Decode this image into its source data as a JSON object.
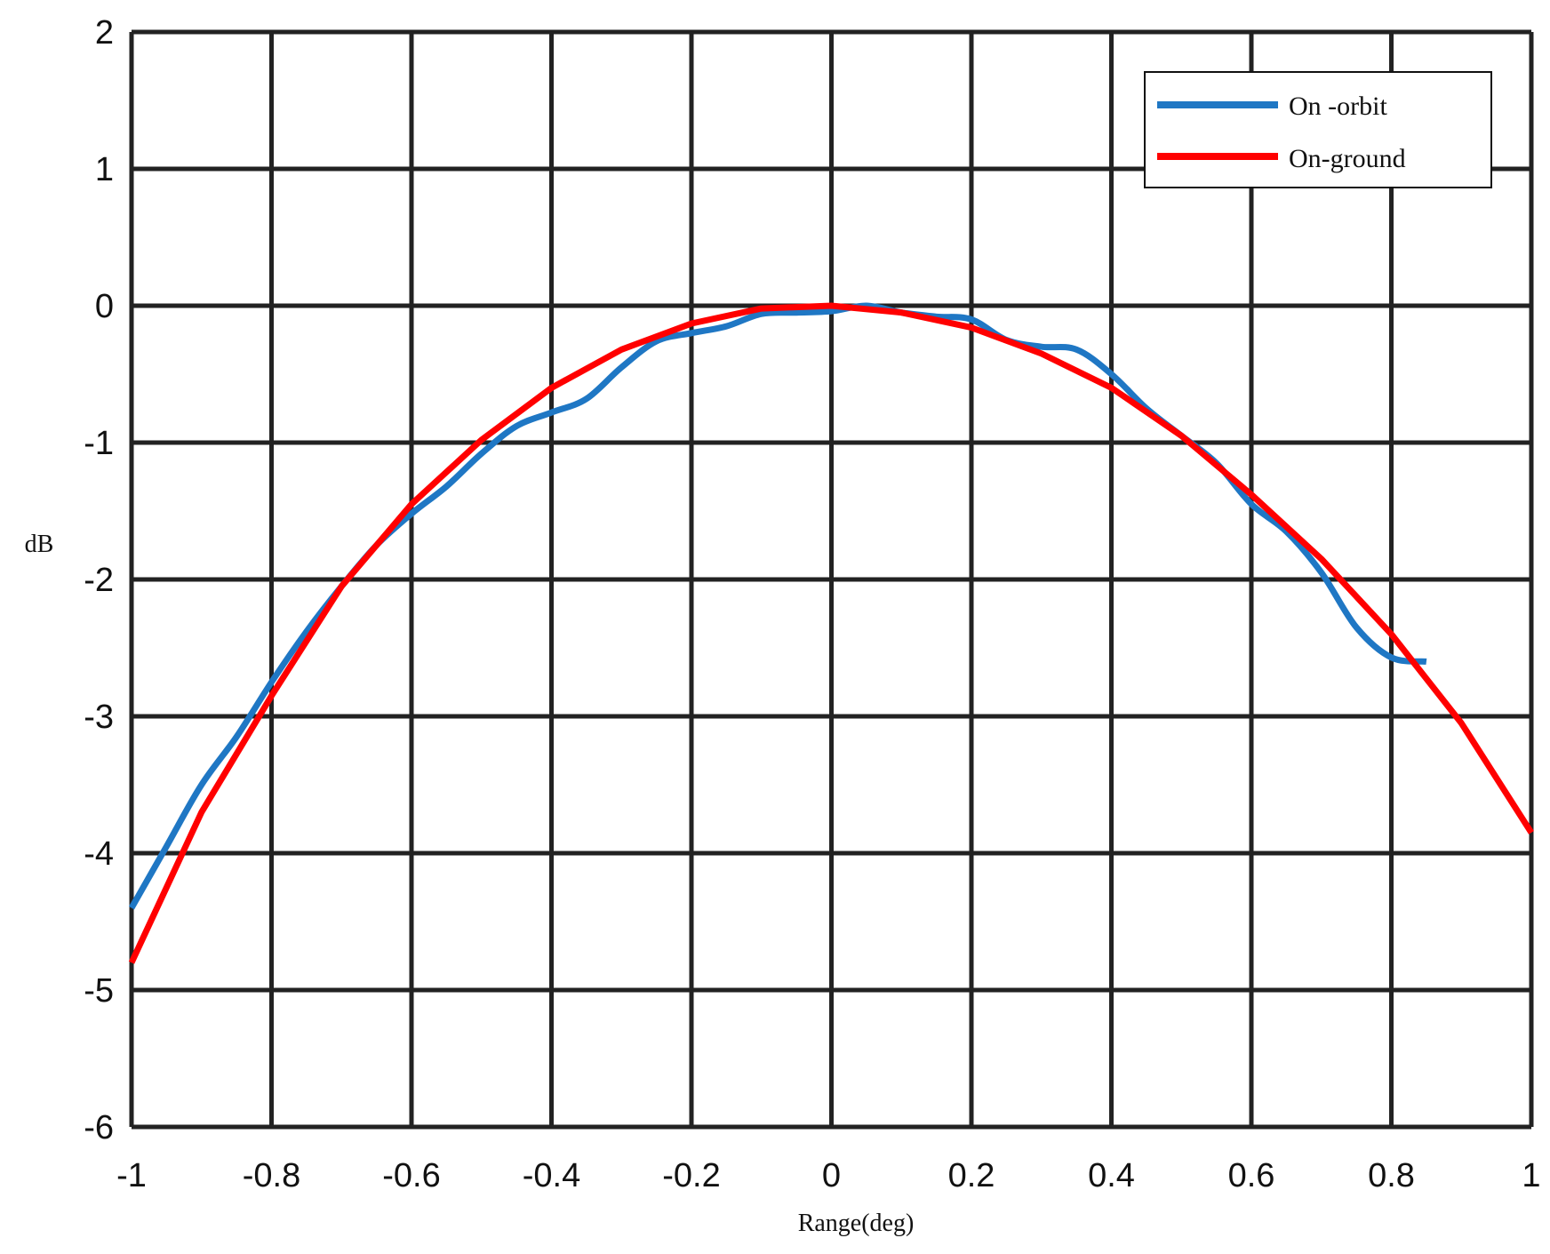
{
  "chart_data": {
    "type": "line",
    "title": "",
    "xlabel": "Range(deg)",
    "ylabel": "dB",
    "xlim": [
      -1,
      1
    ],
    "ylim": [
      -6,
      2
    ],
    "xticks": [
      -1,
      -0.8,
      -0.6,
      -0.4,
      -0.2,
      0,
      0.2,
      0.4,
      0.6,
      0.8,
      1
    ],
    "xtick_labels": [
      "-1",
      "-0.8",
      "-0.6",
      "-0.4",
      "-0.2",
      "0",
      "0.2",
      "0.4",
      "0.6",
      "0.8",
      "1"
    ],
    "yticks": [
      2,
      1,
      0,
      -1,
      -2,
      -3,
      -4,
      -5,
      -6
    ],
    "ytick_labels": [
      "2",
      "1",
      "0",
      "-1",
      "-2",
      "-3",
      "-4",
      "-5",
      "-6"
    ],
    "grid": true,
    "legend_position": "top-right",
    "series": [
      {
        "name": "On -orbit",
        "color": "#1f77c4",
        "x": [
          -1,
          -0.95,
          -0.9,
          -0.85,
          -0.8,
          -0.75,
          -0.7,
          -0.65,
          -0.6,
          -0.55,
          -0.5,
          -0.45,
          -0.4,
          -0.35,
          -0.3,
          -0.25,
          -0.2,
          -0.15,
          -0.1,
          -0.05,
          0,
          0.05,
          0.1,
          0.15,
          0.2,
          0.25,
          0.3,
          0.35,
          0.4,
          0.45,
          0.5,
          0.55,
          0.6,
          0.65,
          0.7,
          0.75,
          0.8,
          0.85
        ],
        "y": [
          -4.4,
          -3.95,
          -3.5,
          -3.15,
          -2.75,
          -2.38,
          -2.05,
          -1.75,
          -1.52,
          -1.32,
          -1.08,
          -0.88,
          -0.78,
          -0.68,
          -0.45,
          -0.26,
          -0.2,
          -0.15,
          -0.06,
          -0.05,
          -0.04,
          0.0,
          -0.05,
          -0.08,
          -0.1,
          -0.25,
          -0.3,
          -0.32,
          -0.5,
          -0.75,
          -0.95,
          -1.15,
          -1.45,
          -1.65,
          -1.95,
          -2.35,
          -2.57,
          -2.6
        ]
      },
      {
        "name": "On-ground",
        "color": "#ff0000",
        "x": [
          -1,
          -0.9,
          -0.8,
          -0.7,
          -0.6,
          -0.5,
          -0.4,
          -0.3,
          -0.2,
          -0.1,
          0,
          0.1,
          0.2,
          0.3,
          0.4,
          0.5,
          0.6,
          0.7,
          0.8,
          0.9,
          1
        ],
        "y": [
          -4.8,
          -3.7,
          -2.85,
          -2.05,
          -1.45,
          -0.98,
          -0.6,
          -0.32,
          -0.13,
          -0.02,
          0.0,
          -0.05,
          -0.16,
          -0.35,
          -0.6,
          -0.95,
          -1.38,
          -1.85,
          -2.4,
          -3.05,
          -3.85
        ]
      }
    ]
  }
}
